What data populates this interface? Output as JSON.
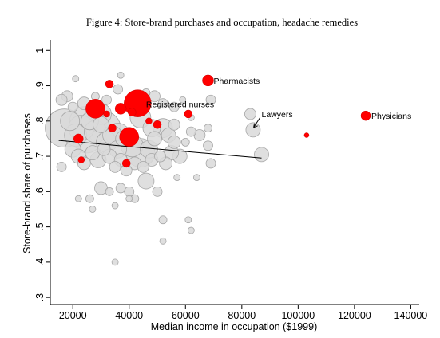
{
  "chart_data": {
    "type": "scatter",
    "title": "Figure 4: Store-brand purchases and occupation, headache remedies",
    "xlabel": "Median income in occupation ($1999)",
    "ylabel": "Store-brand share of purchases",
    "xlim": [
      12000,
      143000
    ],
    "ylim": [
      0.28,
      1.03
    ],
    "x_ticks": [
      20000,
      40000,
      60000,
      80000,
      100000,
      120000,
      140000
    ],
    "y_ticks": [
      0.3,
      0.4,
      0.5,
      0.6,
      0.7,
      0.8,
      0.9,
      1.0
    ],
    "x_tick_labels": [
      "20000",
      "40000",
      "60000",
      "80000",
      "100000",
      "120000",
      "140000"
    ],
    "y_tick_labels": [
      ".3",
      ".4",
      ".5",
      ".6",
      ".7",
      ".8",
      ".9",
      "1"
    ],
    "grid": false,
    "fit_line": {
      "x": [
        15000,
        87000
      ],
      "y": [
        0.745,
        0.695
      ]
    },
    "colors": {
      "gray_fill": "#d9d9d9",
      "gray_stroke": "#a6a6a6",
      "highlight": "#ff0000",
      "line": "#000000"
    },
    "gray_points": [
      {
        "x": 17000,
        "y": 0.78,
        "s": 24
      },
      {
        "x": 19000,
        "y": 0.8,
        "s": 12
      },
      {
        "x": 21000,
        "y": 0.76,
        "s": 14
      },
      {
        "x": 23000,
        "y": 0.78,
        "s": 16
      },
      {
        "x": 25000,
        "y": 0.75,
        "s": 18
      },
      {
        "x": 26000,
        "y": 0.8,
        "s": 11
      },
      {
        "x": 28000,
        "y": 0.77,
        "s": 14
      },
      {
        "x": 30000,
        "y": 0.79,
        "s": 10
      },
      {
        "x": 32000,
        "y": 0.74,
        "s": 13
      },
      {
        "x": 34000,
        "y": 0.76,
        "s": 12
      },
      {
        "x": 36000,
        "y": 0.72,
        "s": 11
      },
      {
        "x": 38000,
        "y": 0.75,
        "s": 10
      },
      {
        "x": 41000,
        "y": 0.73,
        "s": 14
      },
      {
        "x": 44000,
        "y": 0.71,
        "s": 18
      },
      {
        "x": 47000,
        "y": 0.72,
        "s": 11
      },
      {
        "x": 49000,
        "y": 0.75,
        "s": 9
      },
      {
        "x": 52000,
        "y": 0.78,
        "s": 12
      },
      {
        "x": 54000,
        "y": 0.76,
        "s": 9
      },
      {
        "x": 56000,
        "y": 0.74,
        "s": 8
      },
      {
        "x": 58000,
        "y": 0.7,
        "s": 9
      },
      {
        "x": 20000,
        "y": 0.72,
        "s": 10
      },
      {
        "x": 22000,
        "y": 0.7,
        "s": 9
      },
      {
        "x": 24000,
        "y": 0.68,
        "s": 8
      },
      {
        "x": 27000,
        "y": 0.71,
        "s": 9
      },
      {
        "x": 29000,
        "y": 0.69,
        "s": 10
      },
      {
        "x": 31000,
        "y": 0.72,
        "s": 8
      },
      {
        "x": 33000,
        "y": 0.7,
        "s": 9
      },
      {
        "x": 35000,
        "y": 0.67,
        "s": 7
      },
      {
        "x": 37000,
        "y": 0.69,
        "s": 8
      },
      {
        "x": 39000,
        "y": 0.66,
        "s": 7
      },
      {
        "x": 42000,
        "y": 0.68,
        "s": 8
      },
      {
        "x": 45000,
        "y": 0.67,
        "s": 7
      },
      {
        "x": 48000,
        "y": 0.69,
        "s": 8
      },
      {
        "x": 51000,
        "y": 0.7,
        "s": 7
      },
      {
        "x": 53000,
        "y": 0.68,
        "s": 8
      },
      {
        "x": 55000,
        "y": 0.71,
        "s": 9
      },
      {
        "x": 46000,
        "y": 0.63,
        "s": 10
      },
      {
        "x": 50000,
        "y": 0.6,
        "s": 6
      },
      {
        "x": 37000,
        "y": 0.61,
        "s": 6
      },
      {
        "x": 40000,
        "y": 0.6,
        "s": 6
      },
      {
        "x": 33000,
        "y": 0.6,
        "s": 5
      },
      {
        "x": 30000,
        "y": 0.61,
        "s": 8
      },
      {
        "x": 26000,
        "y": 0.58,
        "s": 5
      },
      {
        "x": 22000,
        "y": 0.58,
        "s": 4
      },
      {
        "x": 27000,
        "y": 0.55,
        "s": 4
      },
      {
        "x": 35000,
        "y": 0.56,
        "s": 4
      },
      {
        "x": 40000,
        "y": 0.58,
        "s": 4
      },
      {
        "x": 42000,
        "y": 0.58,
        "s": 5
      },
      {
        "x": 52000,
        "y": 0.52,
        "s": 5
      },
      {
        "x": 61000,
        "y": 0.52,
        "s": 4
      },
      {
        "x": 52000,
        "y": 0.46,
        "s": 4
      },
      {
        "x": 62000,
        "y": 0.49,
        "s": 4
      },
      {
        "x": 35000,
        "y": 0.4,
        "s": 4
      },
      {
        "x": 16000,
        "y": 0.67,
        "s": 6
      },
      {
        "x": 18000,
        "y": 0.87,
        "s": 7
      },
      {
        "x": 21000,
        "y": 0.92,
        "s": 4
      },
      {
        "x": 16000,
        "y": 0.86,
        "s": 7
      },
      {
        "x": 20000,
        "y": 0.84,
        "s": 6
      },
      {
        "x": 24000,
        "y": 0.85,
        "s": 8
      },
      {
        "x": 28000,
        "y": 0.87,
        "s": 5
      },
      {
        "x": 32000,
        "y": 0.86,
        "s": 6
      },
      {
        "x": 36000,
        "y": 0.89,
        "s": 6
      },
      {
        "x": 37000,
        "y": 0.93,
        "s": 4
      },
      {
        "x": 46000,
        "y": 0.88,
        "s": 5
      },
      {
        "x": 49000,
        "y": 0.87,
        "s": 7
      },
      {
        "x": 52000,
        "y": 0.85,
        "s": 6
      },
      {
        "x": 56000,
        "y": 0.84,
        "s": 6
      },
      {
        "x": 59000,
        "y": 0.86,
        "s": 4
      },
      {
        "x": 62000,
        "y": 0.81,
        "s": 4
      },
      {
        "x": 56000,
        "y": 0.79,
        "s": 7
      },
      {
        "x": 62000,
        "y": 0.77,
        "s": 6
      },
      {
        "x": 60000,
        "y": 0.74,
        "s": 5
      },
      {
        "x": 65000,
        "y": 0.76,
        "s": 7
      },
      {
        "x": 68000,
        "y": 0.73,
        "s": 6
      },
      {
        "x": 69000,
        "y": 0.68,
        "s": 6
      },
      {
        "x": 68000,
        "y": 0.78,
        "s": 5
      },
      {
        "x": 69000,
        "y": 0.86,
        "s": 6
      },
      {
        "x": 64000,
        "y": 0.64,
        "s": 4
      },
      {
        "x": 57000,
        "y": 0.64,
        "s": 4
      },
      {
        "x": 83000,
        "y": 0.82,
        "s": 7
      },
      {
        "x": 84000,
        "y": 0.775,
        "s": 9
      },
      {
        "x": 87000,
        "y": 0.705,
        "s": 9
      },
      {
        "x": 44000,
        "y": 0.81,
        "s": 13
      },
      {
        "x": 48000,
        "y": 0.78,
        "s": 11
      },
      {
        "x": 24000,
        "y": 0.8,
        "s": 18
      },
      {
        "x": 30000,
        "y": 0.82,
        "s": 13
      },
      {
        "x": 36000,
        "y": 0.76,
        "s": 15
      },
      {
        "x": 31000,
        "y": 0.78,
        "s": 21
      }
    ],
    "red_points": [
      {
        "x": 43000,
        "y": 0.85,
        "s": 17
      },
      {
        "x": 40000,
        "y": 0.755,
        "s": 12
      },
      {
        "x": 28000,
        "y": 0.835,
        "s": 12
      },
      {
        "x": 37000,
        "y": 0.835,
        "s": 7
      },
      {
        "x": 68000,
        "y": 0.915,
        "s": 7
      },
      {
        "x": 124000,
        "y": 0.815,
        "s": 6
      },
      {
        "x": 33000,
        "y": 0.905,
        "s": 5
      },
      {
        "x": 22000,
        "y": 0.75,
        "s": 6
      },
      {
        "x": 61000,
        "y": 0.82,
        "s": 5
      },
      {
        "x": 50000,
        "y": 0.79,
        "s": 5
      },
      {
        "x": 39000,
        "y": 0.68,
        "s": 5
      },
      {
        "x": 23000,
        "y": 0.69,
        "s": 4
      },
      {
        "x": 34000,
        "y": 0.78,
        "s": 5
      },
      {
        "x": 103000,
        "y": 0.76,
        "s": 3
      },
      {
        "x": 41000,
        "y": 0.825,
        "s": 5
      },
      {
        "x": 47000,
        "y": 0.8,
        "s": 4
      },
      {
        "x": 32000,
        "y": 0.82,
        "s": 4
      }
    ],
    "annotations": [
      {
        "text": "Pharmacists",
        "x": 70000,
        "y": 0.915
      },
      {
        "text": "Registered nurses",
        "x": 46000,
        "y": 0.848
      },
      {
        "text": "Lawyers",
        "x": 87000,
        "y": 0.82
      },
      {
        "text": "Physicians",
        "x": 126000,
        "y": 0.815
      }
    ]
  }
}
